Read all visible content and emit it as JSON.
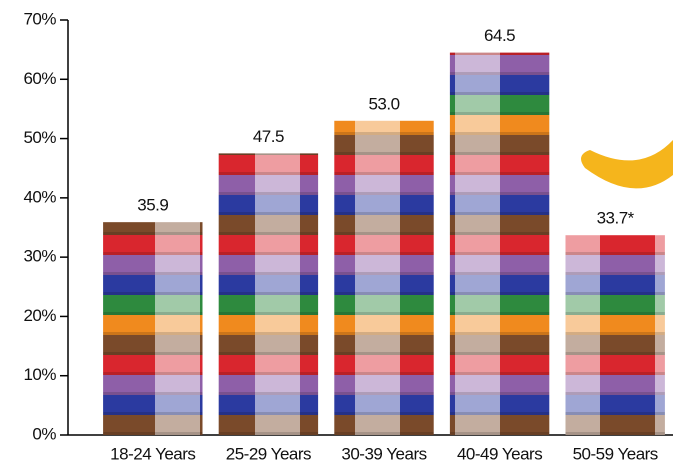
{
  "chart_data": {
    "type": "bar",
    "categories": [
      "18-24 Years",
      "25-29 Years",
      "30-39 Years",
      "40-49 Years",
      "50-59 Years"
    ],
    "values": [
      35.9,
      47.5,
      53.0,
      64.5,
      33.7
    ],
    "value_labels": [
      "35.9",
      "47.5",
      "53.0",
      "64.5",
      "33.7*"
    ],
    "ylim": [
      0,
      70
    ],
    "yticks": [
      {
        "value": 0,
        "label": "0%"
      },
      {
        "value": 10,
        "label": "10%"
      },
      {
        "value": 20,
        "label": "20%"
      },
      {
        "value": 30,
        "label": "30%"
      },
      {
        "value": 40,
        "label": "40%"
      },
      {
        "value": 50,
        "label": "50%"
      },
      {
        "value": 60,
        "label": "60%"
      },
      {
        "value": 70,
        "label": "70%"
      }
    ],
    "grid": false
  }
}
